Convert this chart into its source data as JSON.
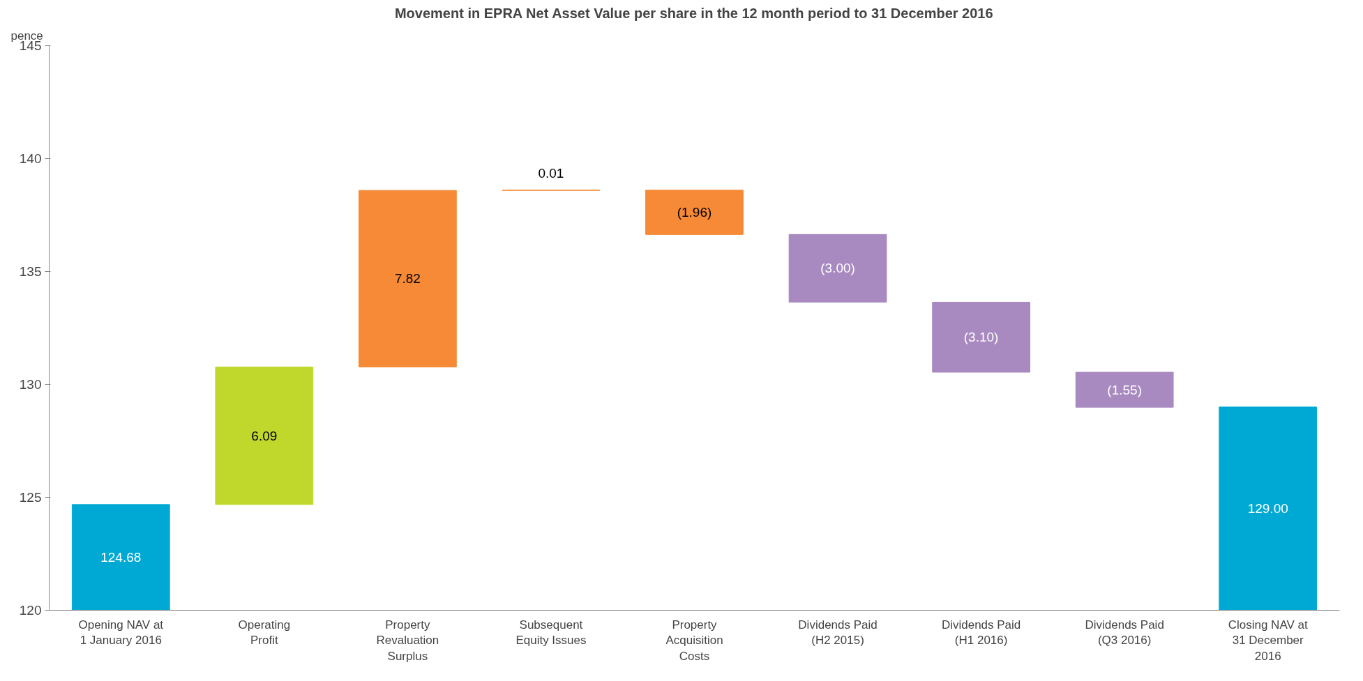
{
  "chart_data": {
    "type": "bar",
    "title": "Movement in EPRA Net Asset Value per share in the 12 month period to 31 December 2016",
    "ylabel": "pence",
    "categories": [
      "Opening NAV at 1 January 2016",
      "Operating Profit",
      "Property Revaluation Surplus",
      "Subsequent Equity Issues",
      "Property Acquisition Costs",
      "Dividends Paid (H2 2015)",
      "Dividends Paid (H1 2016)",
      "Dividends Paid (Q3 2016)",
      "Closing NAV at 31 December 2016"
    ],
    "values": [
      124.68,
      6.09,
      7.82,
      0.01,
      -1.96,
      -3.0,
      -3.1,
      -1.55,
      129.0
    ],
    "base": [
      0,
      124.68,
      130.77,
      138.59,
      138.6,
      136.64,
      133.64,
      130.54,
      0
    ],
    "colors": [
      "#00a9d4",
      "#c0d82c",
      "#f68a37",
      "#f68a37",
      "#f68a37",
      "#a889c0",
      "#a889c0",
      "#a889c0",
      "#00a9d4"
    ],
    "value_labels": [
      "124.68",
      "6.09",
      "7.82",
      "0.01",
      "(1.96)",
      "(3.00)",
      "(3.10)",
      "(1.55)",
      "129.00"
    ],
    "ylim": [
      120,
      145
    ],
    "yticks": [
      120,
      125,
      130,
      135,
      140,
      145
    ],
    "grid": false
  }
}
